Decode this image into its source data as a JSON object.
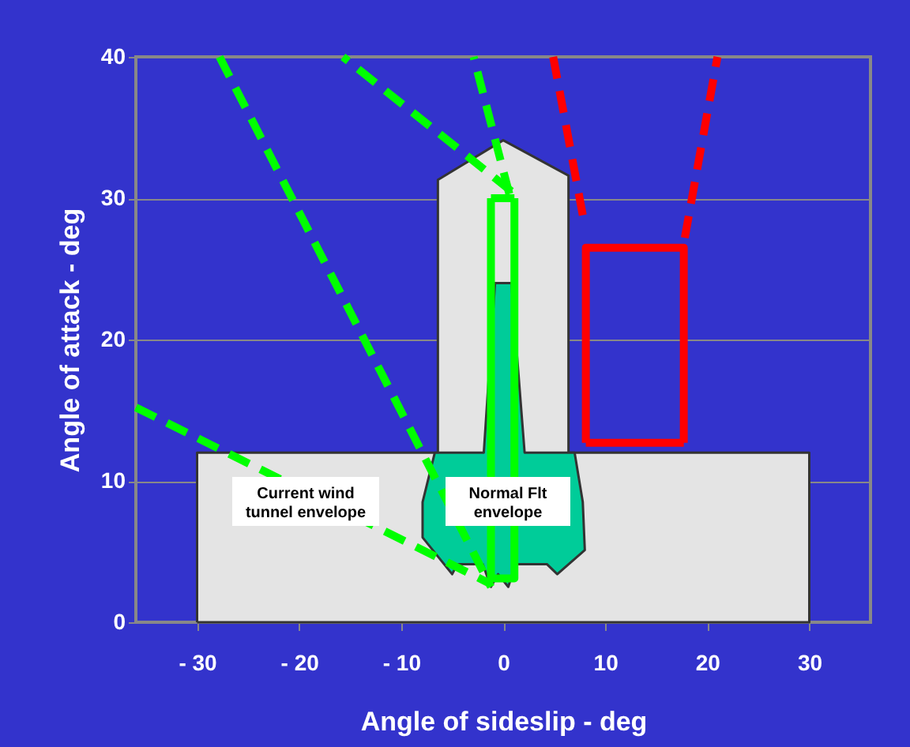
{
  "chart_data": {
    "type": "line",
    "xlabel": "Angle of sideslip - deg",
    "ylabel": "Angle of attack - deg",
    "xlim": [
      -36,
      36
    ],
    "ylim": [
      0,
      40
    ],
    "xticks": [
      {
        "value": -30,
        "label": "- 30"
      },
      {
        "value": -20,
        "label": "- 20"
      },
      {
        "value": -10,
        "label": "- 10"
      },
      0,
      10,
      20,
      30
    ],
    "yticks": [
      0,
      10,
      20,
      30,
      40
    ],
    "grid": "y",
    "series": [
      {
        "type": "area",
        "color": "#e4e4e4",
        "x": [
          -30,
          -30,
          -6.4,
          -6.4,
          0,
          6.4,
          6.4,
          30,
          30,
          -30
        ],
        "values": [
          0,
          12,
          12,
          31.3,
          34.1,
          31.6,
          12,
          12,
          0,
          0
        ]
      },
      {
        "type": "area",
        "color": "#00cc99",
        "x": [
          -6.7,
          -1.9,
          -0.8,
          0.8,
          2.1,
          7.0,
          7.8,
          8.0,
          5.3,
          4.3,
          1.2,
          0.5,
          -0.5,
          -1.2,
          -2.0,
          -4.5,
          -5.0,
          -7.9,
          -7.9,
          -6.7
        ],
        "values": [
          12,
          12,
          24,
          24,
          12,
          12,
          8.5,
          5.1,
          3.4,
          4.1,
          4.1,
          2.5,
          3.4,
          2.5,
          4.1,
          4.1,
          3.4,
          6.0,
          8.5,
          12
        ]
      },
      {
        "color": "#ff0000",
        "line_style": "dashed",
        "x": [
          7.8,
          4.9
        ],
        "values": [
          28.8,
          40
        ]
      },
      {
        "color": "#ff0000",
        "line_style": "dashed",
        "x": [
          17.8,
          21.0
        ],
        "values": [
          27.2,
          40
        ]
      },
      {
        "color": "#00ff00",
        "line_style": "dashed",
        "x": [
          0.6,
          -2.9
        ],
        "values": [
          30.3,
          40
        ]
      },
      {
        "color": "#00ff00",
        "line_style": "dashed",
        "x": [
          0.8,
          -15.7
        ],
        "values": [
          30.5,
          40
        ]
      },
      {
        "color": "#00ff00",
        "line_style": "dashed",
        "x": [
          -27.8,
          -1.2
        ],
        "values": [
          40,
          2.5
        ]
      },
      {
        "color": "#00ff00",
        "line_style": "dashed",
        "x": [
          -36,
          -1.2
        ],
        "values": [
          15.2,
          2.7
        ]
      },
      {
        "color": "#00ff00",
        "line_style": "solid",
        "x": [
          -1.2,
          -1.2,
          1.1,
          1.1
        ],
        "values": [
          30,
          3.1,
          3.1,
          30
        ]
      },
      {
        "color": "#00ff00",
        "line_style": "solid",
        "x": [
          -1.2,
          1.1
        ],
        "values": [
          30,
          30
        ]
      },
      {
        "color": "#ff0000",
        "line_style": "solid",
        "x": [
          8.1,
          8.1,
          17.7,
          17.7
        ],
        "values": [
          12.7,
          26.5,
          26.5,
          12.7
        ]
      },
      {
        "color": "#ff0000",
        "line_style": "solid",
        "x": [
          8.1,
          17.7
        ],
        "values": [
          12.7,
          12.7
        ]
      }
    ],
    "annotations": [
      "Current wind\ntunnel envelope",
      "Normal Flt\nenvelope"
    ]
  }
}
